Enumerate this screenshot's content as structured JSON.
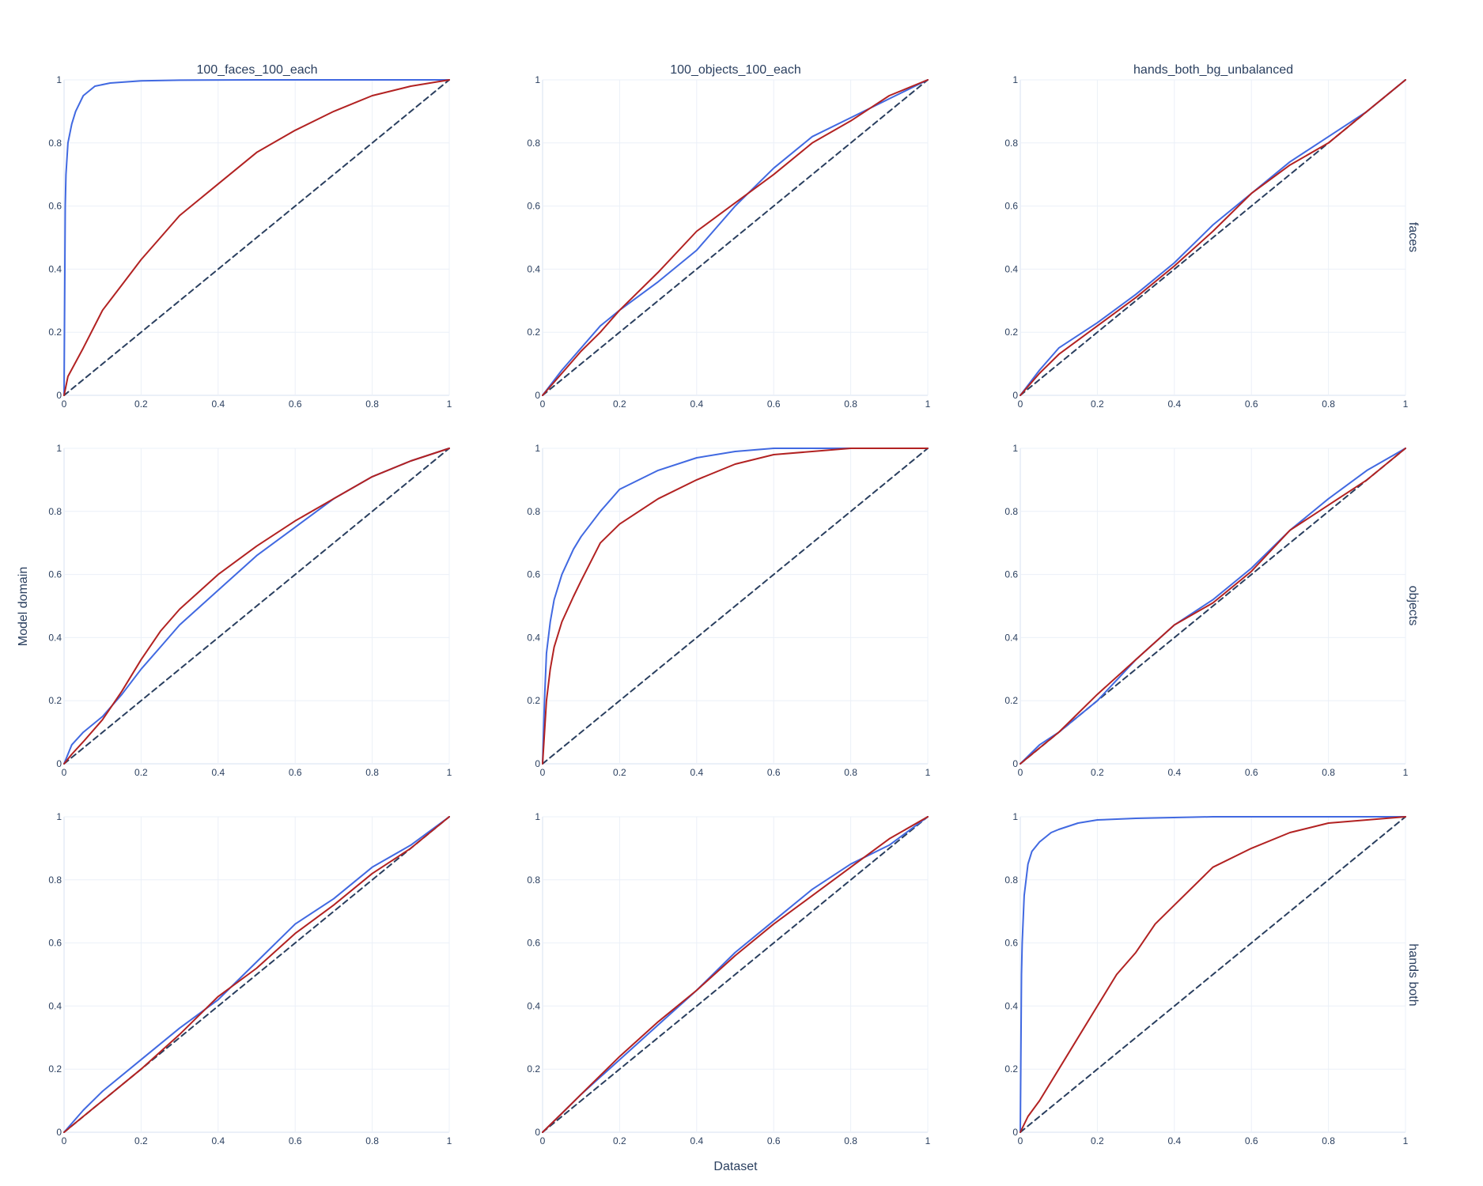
{
  "figure": {
    "xlabel": "Dataset",
    "ylabel": "Model domain",
    "columns": [
      "100_faces_100_each",
      "100_objects_100_each",
      "hands_both_bg_unbalanced"
    ],
    "rows": [
      "faces",
      "objects",
      "hands both"
    ],
    "tick_labels": [
      "0",
      "0.2",
      "0.4",
      "0.6",
      "0.8",
      "1"
    ],
    "colors": {
      "blue": "#4169e1",
      "red": "#b22222",
      "diagonal": "#2a3f5f",
      "grid": "#ebf0f8",
      "text": "#2a3f5f"
    }
  },
  "chart_data": [
    {
      "type": "line",
      "row": "faces",
      "column": "100_faces_100_each",
      "xlim": [
        0,
        1
      ],
      "ylim": [
        0,
        1
      ],
      "grid": true,
      "series": [
        {
          "color": "#4169e1",
          "x": [
            0,
            0.003,
            0.005,
            0.01,
            0.02,
            0.03,
            0.05,
            0.08,
            0.12,
            0.2,
            0.3,
            0.5,
            1
          ],
          "y": [
            0,
            0.6,
            0.7,
            0.8,
            0.86,
            0.9,
            0.95,
            0.98,
            0.99,
            0.997,
            0.999,
            1,
            1
          ]
        },
        {
          "color": "#b22222",
          "x": [
            0,
            0.01,
            0.05,
            0.1,
            0.15,
            0.2,
            0.25,
            0.3,
            0.4,
            0.5,
            0.6,
            0.7,
            0.8,
            0.9,
            1
          ],
          "y": [
            0,
            0.06,
            0.15,
            0.27,
            0.35,
            0.43,
            0.5,
            0.57,
            0.67,
            0.77,
            0.84,
            0.9,
            0.95,
            0.98,
            1
          ]
        },
        {
          "color": "#2a3f5f",
          "dash": true,
          "x": [
            0,
            1
          ],
          "y": [
            0,
            1
          ]
        }
      ]
    },
    {
      "type": "line",
      "row": "faces",
      "column": "100_objects_100_each",
      "xlim": [
        0,
        1
      ],
      "ylim": [
        0,
        1
      ],
      "grid": true,
      "series": [
        {
          "color": "#4169e1",
          "x": [
            0,
            0.05,
            0.1,
            0.15,
            0.2,
            0.3,
            0.4,
            0.5,
            0.6,
            0.7,
            0.8,
            0.9,
            1
          ],
          "y": [
            0,
            0.08,
            0.15,
            0.22,
            0.27,
            0.36,
            0.46,
            0.6,
            0.72,
            0.82,
            0.88,
            0.94,
            1
          ]
        },
        {
          "color": "#b22222",
          "x": [
            0,
            0.05,
            0.1,
            0.15,
            0.2,
            0.3,
            0.4,
            0.5,
            0.6,
            0.7,
            0.8,
            0.9,
            1
          ],
          "y": [
            0,
            0.07,
            0.14,
            0.2,
            0.27,
            0.39,
            0.52,
            0.61,
            0.7,
            0.8,
            0.87,
            0.95,
            1
          ]
        },
        {
          "color": "#2a3f5f",
          "dash": true,
          "x": [
            0,
            1
          ],
          "y": [
            0,
            1
          ]
        }
      ]
    },
    {
      "type": "line",
      "row": "faces",
      "column": "hands_both_bg_unbalanced",
      "xlim": [
        0,
        1
      ],
      "ylim": [
        0,
        1
      ],
      "grid": true,
      "series": [
        {
          "color": "#4169e1",
          "x": [
            0,
            0.05,
            0.1,
            0.2,
            0.3,
            0.4,
            0.5,
            0.6,
            0.7,
            0.8,
            0.9,
            1
          ],
          "y": [
            0,
            0.08,
            0.15,
            0.23,
            0.32,
            0.42,
            0.54,
            0.64,
            0.74,
            0.82,
            0.9,
            1
          ]
        },
        {
          "color": "#b22222",
          "x": [
            0,
            0.05,
            0.1,
            0.2,
            0.3,
            0.4,
            0.5,
            0.6,
            0.7,
            0.8,
            0.9,
            1
          ],
          "y": [
            0,
            0.07,
            0.13,
            0.22,
            0.31,
            0.41,
            0.52,
            0.64,
            0.73,
            0.8,
            0.9,
            1
          ]
        },
        {
          "color": "#2a3f5f",
          "dash": true,
          "x": [
            0,
            1
          ],
          "y": [
            0,
            1
          ]
        }
      ]
    },
    {
      "type": "line",
      "row": "objects",
      "column": "100_faces_100_each",
      "xlim": [
        0,
        1
      ],
      "ylim": [
        0,
        1
      ],
      "grid": true,
      "series": [
        {
          "color": "#4169e1",
          "x": [
            0,
            0.02,
            0.05,
            0.1,
            0.15,
            0.2,
            0.25,
            0.3,
            0.4,
            0.5,
            0.6,
            0.7,
            0.8,
            0.9,
            1
          ],
          "y": [
            0,
            0.06,
            0.1,
            0.15,
            0.22,
            0.3,
            0.37,
            0.44,
            0.55,
            0.66,
            0.75,
            0.84,
            0.91,
            0.96,
            1
          ]
        },
        {
          "color": "#b22222",
          "x": [
            0,
            0.02,
            0.05,
            0.1,
            0.15,
            0.2,
            0.25,
            0.3,
            0.4,
            0.5,
            0.6,
            0.7,
            0.8,
            0.9,
            1
          ],
          "y": [
            0,
            0.03,
            0.07,
            0.14,
            0.23,
            0.33,
            0.42,
            0.49,
            0.6,
            0.69,
            0.77,
            0.84,
            0.91,
            0.96,
            1
          ]
        },
        {
          "color": "#2a3f5f",
          "dash": true,
          "x": [
            0,
            1
          ],
          "y": [
            0,
            1
          ]
        }
      ]
    },
    {
      "type": "line",
      "row": "objects",
      "column": "100_objects_100_each",
      "xlim": [
        0,
        1
      ],
      "ylim": [
        0,
        1
      ],
      "grid": true,
      "series": [
        {
          "color": "#4169e1",
          "x": [
            0,
            0.005,
            0.01,
            0.02,
            0.03,
            0.05,
            0.08,
            0.1,
            0.15,
            0.2,
            0.3,
            0.4,
            0.5,
            0.6,
            0.7,
            1
          ],
          "y": [
            0,
            0.2,
            0.35,
            0.45,
            0.52,
            0.6,
            0.68,
            0.72,
            0.8,
            0.87,
            0.93,
            0.97,
            0.99,
            1,
            1,
            1
          ]
        },
        {
          "color": "#b22222",
          "x": [
            0,
            0.01,
            0.02,
            0.03,
            0.05,
            0.08,
            0.1,
            0.15,
            0.2,
            0.3,
            0.4,
            0.5,
            0.6,
            0.7,
            0.8,
            1
          ],
          "y": [
            0,
            0.2,
            0.3,
            0.37,
            0.45,
            0.53,
            0.58,
            0.7,
            0.76,
            0.84,
            0.9,
            0.95,
            0.98,
            0.99,
            1,
            1
          ]
        },
        {
          "color": "#2a3f5f",
          "dash": true,
          "x": [
            0,
            1
          ],
          "y": [
            0,
            1
          ]
        }
      ]
    },
    {
      "type": "line",
      "row": "objects",
      "column": "hands_both_bg_unbalanced",
      "xlim": [
        0,
        1
      ],
      "ylim": [
        0,
        1
      ],
      "grid": true,
      "series": [
        {
          "color": "#4169e1",
          "x": [
            0,
            0.05,
            0.1,
            0.2,
            0.3,
            0.4,
            0.5,
            0.6,
            0.7,
            0.8,
            0.9,
            1
          ],
          "y": [
            0,
            0.06,
            0.1,
            0.2,
            0.33,
            0.44,
            0.52,
            0.62,
            0.74,
            0.84,
            0.93,
            1
          ]
        },
        {
          "color": "#b22222",
          "x": [
            0,
            0.05,
            0.1,
            0.2,
            0.3,
            0.4,
            0.5,
            0.6,
            0.7,
            0.8,
            0.9,
            1
          ],
          "y": [
            0,
            0.05,
            0.1,
            0.22,
            0.33,
            0.44,
            0.51,
            0.61,
            0.74,
            0.82,
            0.9,
            1
          ]
        },
        {
          "color": "#2a3f5f",
          "dash": true,
          "x": [
            0,
            1
          ],
          "y": [
            0,
            1
          ]
        }
      ]
    },
    {
      "type": "line",
      "row": "hands both",
      "column": "100_faces_100_each",
      "xlim": [
        0,
        1
      ],
      "ylim": [
        0,
        1
      ],
      "grid": true,
      "series": [
        {
          "color": "#4169e1",
          "x": [
            0,
            0.05,
            0.1,
            0.2,
            0.3,
            0.4,
            0.5,
            0.6,
            0.7,
            0.8,
            0.9,
            1
          ],
          "y": [
            0,
            0.07,
            0.13,
            0.23,
            0.33,
            0.42,
            0.54,
            0.66,
            0.74,
            0.84,
            0.91,
            1
          ]
        },
        {
          "color": "#b22222",
          "x": [
            0,
            0.05,
            0.1,
            0.2,
            0.3,
            0.4,
            0.5,
            0.6,
            0.7,
            0.8,
            0.9,
            1
          ],
          "y": [
            0,
            0.05,
            0.1,
            0.2,
            0.31,
            0.43,
            0.52,
            0.63,
            0.72,
            0.82,
            0.9,
            1
          ]
        },
        {
          "color": "#2a3f5f",
          "dash": true,
          "x": [
            0,
            1
          ],
          "y": [
            0,
            1
          ]
        }
      ]
    },
    {
      "type": "line",
      "row": "hands both",
      "column": "100_objects_100_each",
      "xlim": [
        0,
        1
      ],
      "ylim": [
        0,
        1
      ],
      "grid": true,
      "series": [
        {
          "color": "#4169e1",
          "x": [
            0,
            0.05,
            0.1,
            0.2,
            0.3,
            0.4,
            0.5,
            0.6,
            0.7,
            0.8,
            0.9,
            1
          ],
          "y": [
            0,
            0.06,
            0.12,
            0.23,
            0.34,
            0.45,
            0.57,
            0.67,
            0.77,
            0.85,
            0.91,
            1
          ]
        },
        {
          "color": "#b22222",
          "x": [
            0,
            0.05,
            0.1,
            0.2,
            0.3,
            0.4,
            0.5,
            0.6,
            0.7,
            0.8,
            0.9,
            1
          ],
          "y": [
            0,
            0.06,
            0.12,
            0.24,
            0.35,
            0.45,
            0.56,
            0.66,
            0.75,
            0.84,
            0.93,
            1
          ]
        },
        {
          "color": "#2a3f5f",
          "dash": true,
          "x": [
            0,
            1
          ],
          "y": [
            0,
            1
          ]
        }
      ]
    },
    {
      "type": "line",
      "row": "hands both",
      "column": "hands_both_bg_unbalanced",
      "xlim": [
        0,
        1
      ],
      "ylim": [
        0,
        1
      ],
      "grid": true,
      "series": [
        {
          "color": "#4169e1",
          "x": [
            0,
            0.003,
            0.005,
            0.01,
            0.02,
            0.03,
            0.05,
            0.08,
            0.1,
            0.15,
            0.2,
            0.3,
            0.5,
            1
          ],
          "y": [
            0,
            0.5,
            0.6,
            0.75,
            0.85,
            0.89,
            0.92,
            0.95,
            0.96,
            0.98,
            0.99,
            0.995,
            1,
            1
          ]
        },
        {
          "color": "#b22222",
          "x": [
            0,
            0.02,
            0.05,
            0.1,
            0.15,
            0.2,
            0.25,
            0.3,
            0.35,
            0.4,
            0.5,
            0.6,
            0.7,
            0.8,
            0.9,
            1
          ],
          "y": [
            0,
            0.05,
            0.1,
            0.2,
            0.3,
            0.4,
            0.5,
            0.57,
            0.66,
            0.72,
            0.84,
            0.9,
            0.95,
            0.98,
            0.99,
            1
          ]
        },
        {
          "color": "#2a3f5f",
          "dash": true,
          "x": [
            0,
            1
          ],
          "y": [
            0,
            1
          ]
        }
      ]
    }
  ]
}
